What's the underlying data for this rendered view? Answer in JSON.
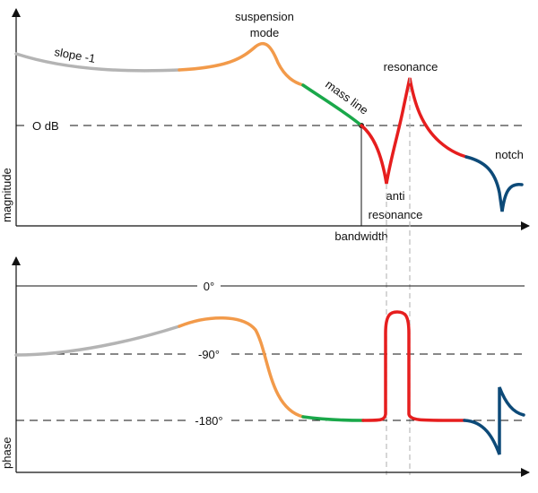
{
  "colors": {
    "slope": "#b4b4b4",
    "suspension": "#f29a4a",
    "mass_line": "#1aa84a",
    "resonance": "#e61e1e",
    "notch": "#0d4a78",
    "axis": "#111111"
  },
  "magnitude": {
    "axis_label": "magnitude",
    "zero_db_label": "O dB",
    "bandwidth_label": "bandwidth",
    "annotations": {
      "slope": "slope -1",
      "suspension_1": "suspension",
      "suspension_2": "mode",
      "mass_line": "mass line",
      "resonance": "resonance",
      "anti_1": "anti",
      "anti_2": "resonance",
      "notch": "notch"
    }
  },
  "phase": {
    "axis_label": "phase",
    "levels": [
      "0°",
      "-90°",
      "-180°"
    ]
  }
}
